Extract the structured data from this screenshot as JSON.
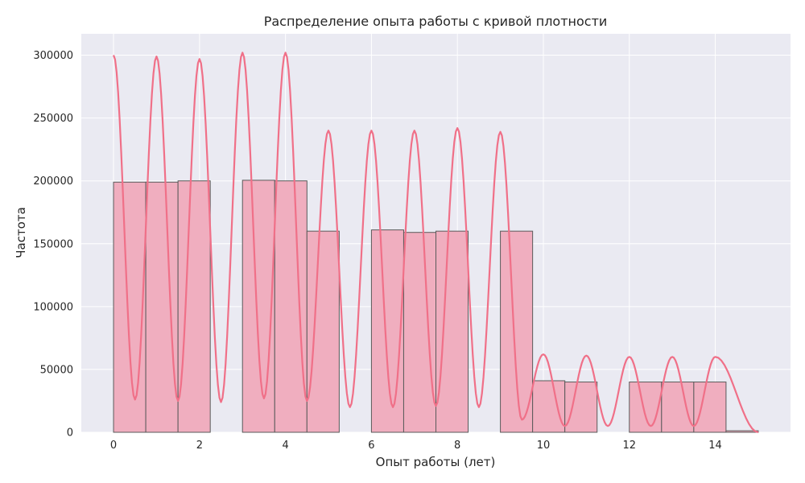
{
  "chart_data": {
    "type": "bar",
    "title": "Распределение опыта работы с кривой плотности",
    "xlabel": "Опыт работы (лет)",
    "ylabel": "Частота",
    "xlim": [
      -0.75,
      15.75
    ],
    "ylim": [
      0,
      317000
    ],
    "xticks": [
      0,
      2,
      4,
      6,
      8,
      10,
      12,
      14
    ],
    "yticks": [
      0,
      50000,
      100000,
      150000,
      200000,
      250000,
      300000
    ],
    "grid": true,
    "bins": [
      {
        "x0": 0.0,
        "x1": 0.75,
        "value": 199000
      },
      {
        "x0": 0.75,
        "x1": 1.5,
        "value": 199000
      },
      {
        "x0": 1.5,
        "x1": 2.25,
        "value": 200000
      },
      {
        "x0": 2.25,
        "x1": 3.0,
        "value": 0
      },
      {
        "x0": 3.0,
        "x1": 3.75,
        "value": 200500
      },
      {
        "x0": 3.75,
        "x1": 4.5,
        "value": 200000
      },
      {
        "x0": 4.5,
        "x1": 5.25,
        "value": 160000
      },
      {
        "x0": 5.25,
        "x1": 6.0,
        "value": 0
      },
      {
        "x0": 6.0,
        "x1": 6.75,
        "value": 161000
      },
      {
        "x0": 6.75,
        "x1": 7.5,
        "value": 159000
      },
      {
        "x0": 7.5,
        "x1": 8.25,
        "value": 160000
      },
      {
        "x0": 8.25,
        "x1": 9.0,
        "value": 0
      },
      {
        "x0": 9.0,
        "x1": 9.75,
        "value": 160000
      },
      {
        "x0": 9.75,
        "x1": 10.5,
        "value": 41000
      },
      {
        "x0": 10.5,
        "x1": 11.25,
        "value": 40000
      },
      {
        "x0": 11.25,
        "x1": 12.0,
        "value": 0
      },
      {
        "x0": 12.0,
        "x1": 12.75,
        "value": 40000
      },
      {
        "x0": 12.75,
        "x1": 13.5,
        "value": 40000
      },
      {
        "x0": 13.5,
        "x1": 14.25,
        "value": 40000
      },
      {
        "x0": 14.25,
        "x1": 15.0,
        "value": 1200
      }
    ],
    "density_curve": {
      "peaks": [
        {
          "x": 0,
          "y": 300000
        },
        {
          "x": 1,
          "y": 299000
        },
        {
          "x": 2,
          "y": 297000
        },
        {
          "x": 3,
          "y": 302000
        },
        {
          "x": 4,
          "y": 302000
        },
        {
          "x": 5,
          "y": 240000
        },
        {
          "x": 6,
          "y": 240000
        },
        {
          "x": 7,
          "y": 240000
        },
        {
          "x": 8,
          "y": 242000
        },
        {
          "x": 9,
          "y": 239000
        },
        {
          "x": 10,
          "y": 62000
        },
        {
          "x": 11,
          "y": 61000
        },
        {
          "x": 12,
          "y": 60000
        },
        {
          "x": 13,
          "y": 60000
        },
        {
          "x": 14,
          "y": 60000
        }
      ],
      "troughs": [
        {
          "x": 0.5,
          "y": 26000
        },
        {
          "x": 1.5,
          "y": 25000
        },
        {
          "x": 2.5,
          "y": 24000
        },
        {
          "x": 3.5,
          "y": 27000
        },
        {
          "x": 4.5,
          "y": 25000
        },
        {
          "x": 5.5,
          "y": 20000
        },
        {
          "x": 6.5,
          "y": 20000
        },
        {
          "x": 7.5,
          "y": 21000
        },
        {
          "x": 8.5,
          "y": 20000
        },
        {
          "x": 9.5,
          "y": 10000
        },
        {
          "x": 10.5,
          "y": 5000
        },
        {
          "x": 11.5,
          "y": 5000
        },
        {
          "x": 12.5,
          "y": 5000
        },
        {
          "x": 13.5,
          "y": 5000
        }
      ],
      "end": {
        "x": 15,
        "y": 0
      }
    },
    "colors": {
      "bar_fill": "#f0aebf",
      "bar_edge": "#5a5a5a",
      "curve": "#f07088",
      "plot_bg": "#eaeaf2",
      "grid": "#ffffff"
    }
  }
}
